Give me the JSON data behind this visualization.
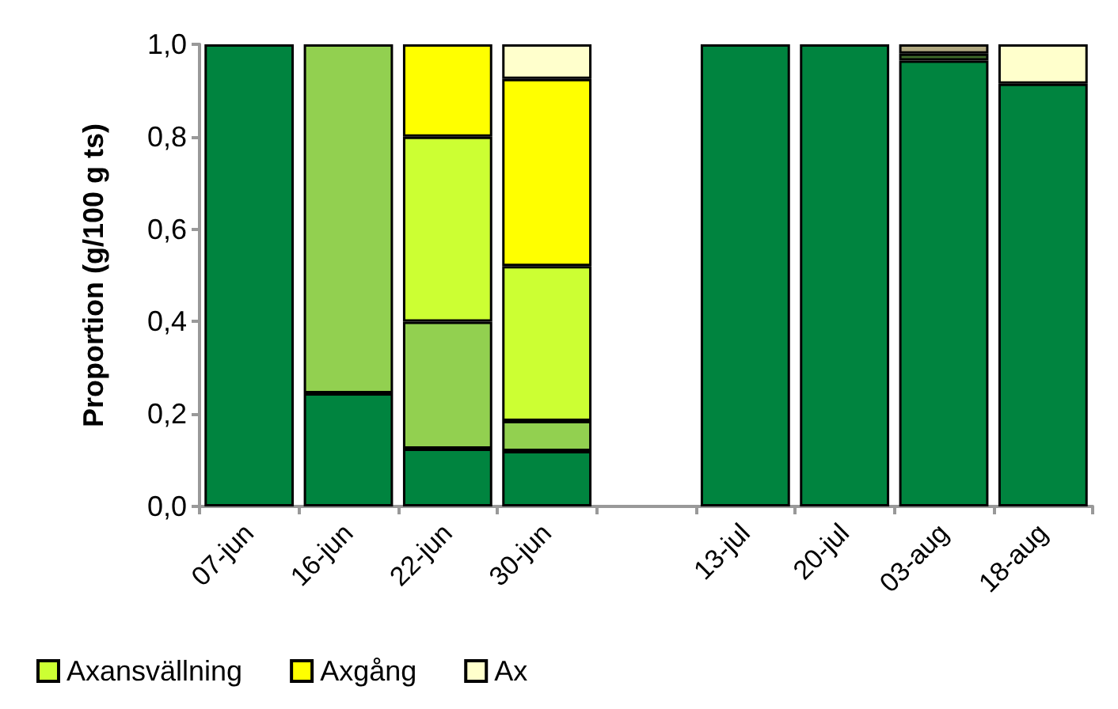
{
  "chart_data": {
    "type": "bar",
    "stacked": true,
    "ylabel": "Proportion (g/100 g ts)",
    "categories": [
      "07-jun",
      "16-jun",
      "22-jun",
      "30-jun",
      null,
      "13-jul",
      "20-jul",
      "03-aug",
      "18-aug"
    ],
    "series": [
      {
        "color": "#00843f",
        "values": [
          1,
          0.245,
          0.125,
          0.12,
          null,
          1,
          1,
          0.965,
          0.915
        ]
      },
      {
        "color": "#92d050",
        "values": [
          null,
          0.755,
          0.275,
          0.065,
          null,
          null,
          null,
          null,
          null
        ]
      },
      {
        "name": "Axansvällning",
        "color": "#ccff33",
        "values": [
          null,
          null,
          0.4,
          0.335,
          null,
          null,
          null,
          null,
          null
        ]
      },
      {
        "name": "Axgång",
        "color": "#ffff00",
        "values": [
          null,
          null,
          0.2,
          0.405,
          null,
          null,
          null,
          null,
          null
        ]
      },
      {
        "color": "#3f6b2a",
        "values": [
          null,
          null,
          null,
          null,
          null,
          null,
          null,
          0.015,
          null
        ]
      },
      {
        "color": "#b0a880",
        "values": [
          null,
          null,
          null,
          null,
          null,
          null,
          null,
          0.02,
          null
        ]
      },
      {
        "name": "Ax",
        "color": "#ffffcc",
        "values": [
          null,
          null,
          null,
          0.075,
          null,
          null,
          null,
          null,
          0.085
        ]
      }
    ],
    "ylim": [
      0,
      1
    ],
    "yticks": [
      {
        "value": 0,
        "label": "0,0"
      },
      {
        "value": 0.2,
        "label": "0,2"
      },
      {
        "value": 0.4,
        "label": "0,4"
      },
      {
        "value": 0.6,
        "label": "0,6"
      },
      {
        "value": 0.8,
        "label": "0,8"
      },
      {
        "value": 1,
        "label": "1,0"
      }
    ],
    "grid": false,
    "legend": "bottom"
  }
}
